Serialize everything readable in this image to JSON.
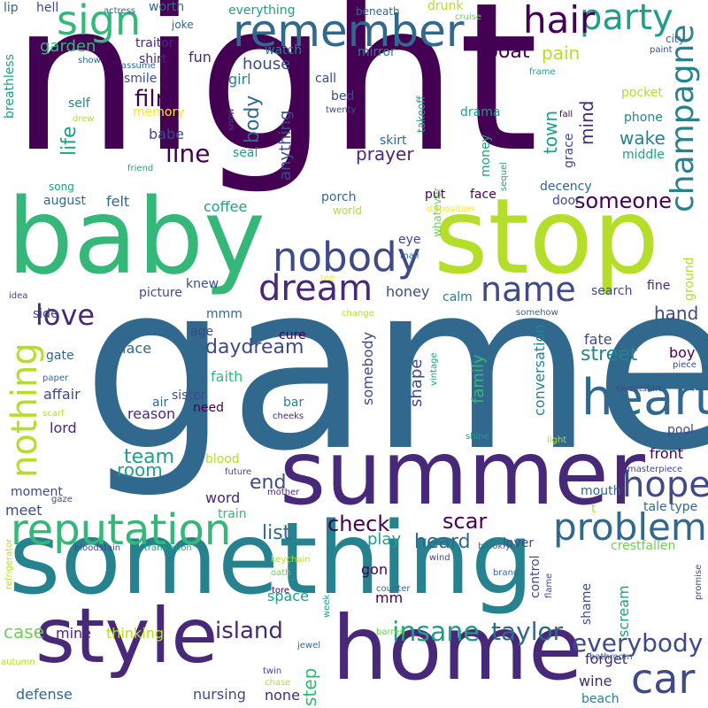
{
  "palette": {
    "dark_purple": "#440154",
    "purple": "#482878",
    "indigo": "#3e4a89",
    "blue": "#31688e",
    "teal": "#26828e",
    "cyan": "#1f9e89",
    "green": "#35b779",
    "lime": "#6ece58",
    "yellow_green": "#b5de2b",
    "yellow": "#fde725"
  },
  "words": {
    "night": "night",
    "game": "game",
    "baby": "baby",
    "stop": "stop",
    "something": "something",
    "summer": "summer",
    "home": "home",
    "style": "style",
    "heart": "heart",
    "remember": "remember",
    "nobody": "nobody",
    "reputation": "reputation",
    "problem": "problem",
    "hope": "hope",
    "champagne": "champagne",
    "party": "party",
    "hair": "hair",
    "sign": "sign",
    "dream": "dream",
    "name": "name",
    "love": "love",
    "nothing": "nothing",
    "car": "car",
    "insane": "insane",
    "everybody": "everybody",
    "taylor": "taylor",
    "island": "island",
    "daydream": "daydream",
    "check": "check",
    "someone": "someone",
    "line": "line",
    "film": "film",
    "body": "body",
    "anything": "anything",
    "scar": "scar",
    "heard": "heard",
    "street": "street",
    "team": "team",
    "room": "room",
    "end": "end",
    "list": "list",
    "boat": "boat",
    "mind": "mind",
    "town": "town",
    "house": "house",
    "life": "life",
    "garden": "garden",
    "pain": "pain",
    "prayer": "prayer",
    "hand": "hand",
    "wake": "wake",
    "family": "family",
    "conversation": "conversation",
    "somebody": "somebody",
    "shape": "shape",
    "step": "step",
    "case": "case",
    "mine": "mine",
    "thinking": "thinking",
    "forget": "forget",
    "defense": "defense",
    "nursing": "nursing",
    "none": "none",
    "beach": "beach",
    "wine": "wine",
    "scream": "scream",
    "shame": "shame",
    "control": "control",
    "play": "play",
    "space": "space",
    "gon": "gon",
    "mm": "mm",
    "lover": "lover",
    "crestfallen": "crestfallen",
    "meet": "meet",
    "moment": "moment",
    "word": "word",
    "train": "train",
    "blood": "blood",
    "front": "front",
    "mouth": "mouth",
    "tale": "tale",
    "type": "type",
    "t": "t",
    "pool": "pool",
    "boy": "boy",
    "fate": "fate",
    "fine": "fine",
    "ground": "ground",
    "search": "search",
    "calm": "calm",
    "honey": "honey",
    "knew": "knew",
    "picture": "picture",
    "place": "place",
    "age": "age",
    "mmm": "mmm",
    "cure": "cure",
    "faith": "faith",
    "sister": "sister",
    "need": "need",
    "reason": "reason",
    "air": "air",
    "bar": "bar",
    "lord": "lord",
    "affair": "affair",
    "gate": "gate",
    "side": "side",
    "coffee": "coffee",
    "felt": "felt",
    "august": "august",
    "song": "song",
    "seal": "seal",
    "babe": "babe",
    "self": "self",
    "memory": "memory",
    "smile": "smile",
    "girl": "girl",
    "fun": "fun",
    "shirt": "shirt",
    "traitor": "traitor",
    "watch": "watch",
    "call": "call",
    "mirror": "mirror",
    "joke": "joke",
    "worth": "worth",
    "everything": "everything",
    "beneath": "beneath",
    "drunk": "drunk",
    "cruise": "cruise",
    "city": "city",
    "frame": "frame",
    "paint": "paint",
    "pocket": "pocket",
    "phone": "phone",
    "middle": "middle",
    "grace": "grace",
    "decency": "decency",
    "door": "door",
    "put": "put",
    "face": "face",
    "money": "money",
    "skirt": "skirt",
    "drama": "drama",
    "takeoff": "takeoff",
    "whatever": "whatever",
    "world": "world",
    "porch": "porch",
    "eye": "eye",
    "mail": "mail",
    "disposition": "disposition",
    "sequel": "sequel",
    "fall": "fall",
    "bed": "bed",
    "twenty": "twenty",
    "lip": "lip",
    "hell": "hell",
    "actress": "actress",
    "breathless": "breathless",
    "show": "show",
    "assume": "assume",
    "drew": "drew",
    "friend": "friend",
    "snow": "snow",
    "idea": "idea",
    "tee": "tee",
    "change": "change",
    "somehow": "somehow",
    "vintage": "vintage",
    "paper": "paper",
    "scarf": "scarf",
    "cheeks": "cheeks",
    "shine": "shine",
    "light": "light",
    "sweatshirt": "sweatshirt",
    "piece": "piece",
    "album": "album",
    "masterpiece": "masterpiece",
    "future": "future",
    "mother": "mother",
    "gaze": "gaze",
    "refrigerator": "refrigerator",
    "bloodstain": "bloodstain",
    "translation": "translation",
    "keychain": "keychain",
    "oath": "oath",
    "brooklyn": "brooklyn",
    "wind": "wind",
    "brand": "brand",
    "flame": "flame",
    "promise": "promise",
    "week": "week",
    "counter": "counter",
    "tore": "tore",
    "jewel": "jewel",
    "barren": "barren",
    "twin": "twin",
    "chase": "chase",
    "autumn": "autumn",
    "bathroom": "bathroom"
  }
}
